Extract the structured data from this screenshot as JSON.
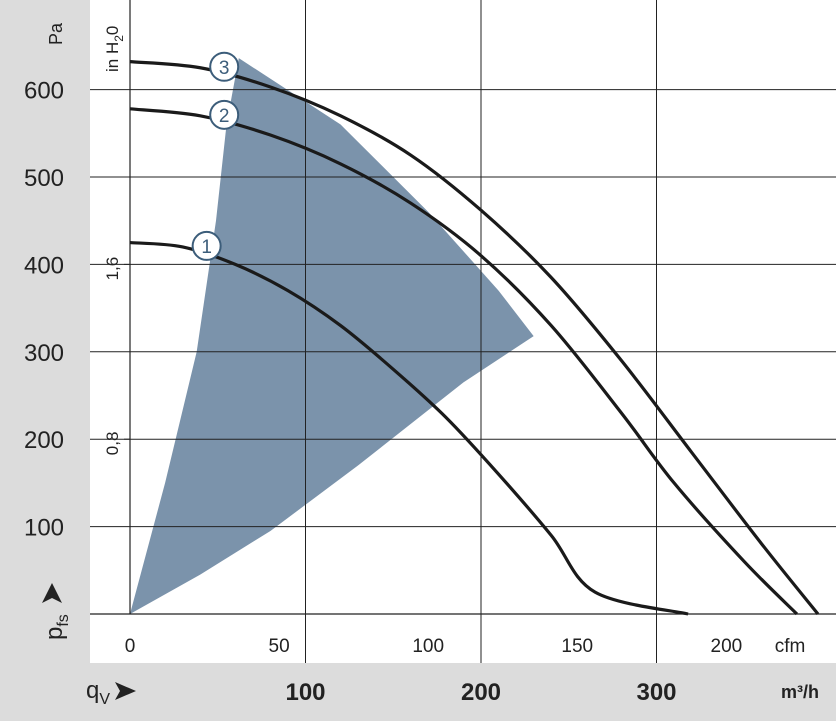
{
  "chart_data": {
    "type": "line",
    "left_axis": {
      "unit": "Pa",
      "ticks": [
        "100",
        "200",
        "300",
        "400",
        "500",
        "600"
      ],
      "tick_values": [
        100,
        200,
        300,
        400,
        500,
        600
      ],
      "quantity_symbol": "p",
      "quantity_subscript": "fs"
    },
    "inner_axis": {
      "unit_main": "in H",
      "unit_sub": "2",
      "unit_tail": "0",
      "ticks": [
        "0,8",
        "1,6"
      ],
      "tick_values_pa": [
        200,
        400
      ]
    },
    "x_axis_cfm": {
      "unit": "cfm",
      "ticks": [
        "0",
        "50",
        "100",
        "150",
        "200"
      ],
      "tick_values": [
        0,
        50,
        100,
        150,
        200
      ]
    },
    "x_axis_m3h": {
      "unit": "m³/h",
      "ticks": [
        "100",
        "200",
        "300"
      ],
      "tick_values": [
        100,
        200,
        300
      ],
      "quantity_symbol": "q",
      "quantity_subscript": "V"
    },
    "xlim_m3h": [
      0,
      400
    ],
    "ylim_pa": [
      0,
      640
    ],
    "grid": true,
    "operating_range_color": "#7b93ab",
    "operating_range": [
      [
        0,
        0
      ],
      [
        20,
        150
      ],
      [
        38,
        300
      ],
      [
        49,
        450
      ],
      [
        55,
        560
      ],
      [
        62,
        636
      ],
      [
        120,
        560
      ],
      [
        170,
        460
      ],
      [
        210,
        370
      ],
      [
        230,
        318
      ],
      [
        190,
        265
      ],
      [
        130,
        170
      ],
      [
        80,
        95
      ],
      [
        40,
        45
      ],
      [
        0,
        0
      ]
    ],
    "series": [
      {
        "name": "1",
        "color": "#1a1a1a",
        "points": [
          [
            0,
            425
          ],
          [
            30,
            420
          ],
          [
            60,
            400
          ],
          [
            90,
            370
          ],
          [
            120,
            330
          ],
          [
            150,
            280
          ],
          [
            180,
            225
          ],
          [
            210,
            160
          ],
          [
            240,
            90
          ],
          [
            265,
            25
          ],
          [
            318,
            0
          ]
        ]
      },
      {
        "name": "2",
        "color": "#1a1a1a",
        "points": [
          [
            0,
            578
          ],
          [
            40,
            570
          ],
          [
            80,
            548
          ],
          [
            120,
            515
          ],
          [
            160,
            470
          ],
          [
            200,
            410
          ],
          [
            240,
            330
          ],
          [
            280,
            230
          ],
          [
            310,
            150
          ],
          [
            350,
            60
          ],
          [
            380,
            0
          ]
        ]
      },
      {
        "name": "3",
        "color": "#1a1a1a",
        "points": [
          [
            0,
            632
          ],
          [
            40,
            625
          ],
          [
            80,
            603
          ],
          [
            120,
            570
          ],
          [
            160,
            525
          ],
          [
            200,
            462
          ],
          [
            240,
            385
          ],
          [
            280,
            290
          ],
          [
            320,
            185
          ],
          [
            360,
            80
          ],
          [
            392,
            0
          ]
        ]
      }
    ]
  }
}
